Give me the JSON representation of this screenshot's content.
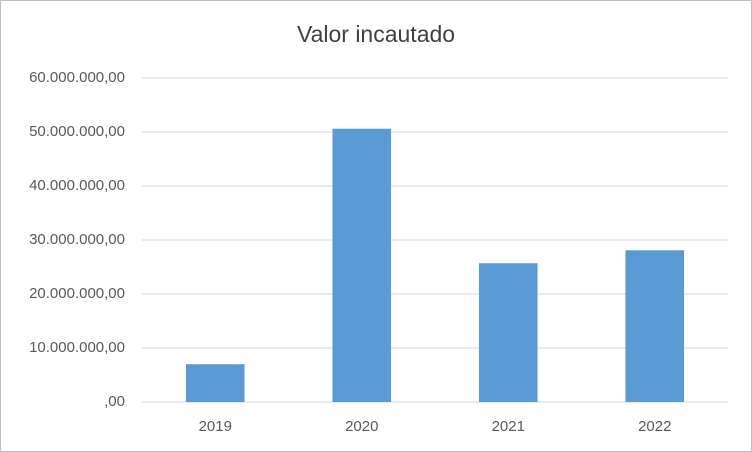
{
  "chart_data": {
    "type": "bar",
    "title": "Valor incautado",
    "categories": [
      "2019",
      "2020",
      "2021",
      "2022"
    ],
    "values": [
      7000000,
      50600000,
      25700000,
      28100000
    ],
    "color": "#5b9bd5",
    "ylim": [
      0,
      60000000
    ],
    "yticks": [
      {
        "value": 0,
        "label": ",00"
      },
      {
        "value": 10000000,
        "label": "10.000.000,00"
      },
      {
        "value": 20000000,
        "label": "20.000.000,00"
      },
      {
        "value": 30000000,
        "label": "30.000.000,00"
      },
      {
        "value": 40000000,
        "label": "40.000.000,00"
      },
      {
        "value": 50000000,
        "label": "50.000.000,00"
      },
      {
        "value": 60000000,
        "label": "60.000.000,00"
      }
    ],
    "grid": true
  }
}
